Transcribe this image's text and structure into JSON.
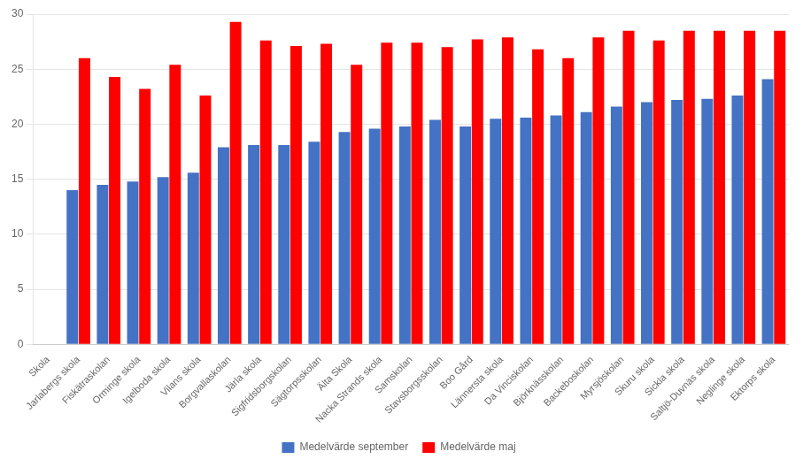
{
  "chart_data": {
    "type": "bar",
    "categories": [
      "Skola",
      "Jarlabergs skola",
      "Fiskätraskolan",
      "Orminge skola",
      "Igelboda skola",
      "Vilans skola",
      "Borgvallaskolan",
      "Järla skola",
      "Sigfridsborgskolan",
      "Sägtorpsskolan",
      "Älta Skola",
      "Nacka Strands skola",
      "Samskolan",
      "Stavsborgsskolan",
      "Boo Gård",
      "Lännersta skola",
      "Da Vinciskolan",
      "Björknässkolan",
      "Backeboskolan",
      "Myrsjöskolan",
      "Skuru skola",
      "Sickla skola",
      "Saltjö-Duvnäs skola",
      "Neglinge skola",
      "Ektorps skola"
    ],
    "series": [
      {
        "name": "Medelvärde september",
        "color": "#4472C4",
        "values": [
          0,
          14.0,
          14.5,
          14.8,
          15.2,
          15.6,
          17.9,
          18.1,
          18.1,
          18.4,
          19.3,
          19.6,
          19.8,
          20.4,
          19.8,
          20.5,
          20.6,
          20.8,
          21.1,
          21.6,
          22.0,
          22.2,
          22.3,
          22.6,
          24.1
        ]
      },
      {
        "name": "Medelvärde maj",
        "color": "#FF0000",
        "values": [
          0,
          26.0,
          24.3,
          23.2,
          25.4,
          22.6,
          29.3,
          27.6,
          27.1,
          27.3,
          25.4,
          27.4,
          27.4,
          27.0,
          27.7,
          27.9,
          26.8,
          26.0,
          27.9,
          28.5,
          27.6,
          28.5,
          28.5,
          28.5,
          28.5
        ]
      }
    ],
    "ylim": [
      0,
      30
    ],
    "yticks": [
      0,
      5,
      10,
      15,
      20,
      25,
      30
    ],
    "grid": true,
    "legend": "bottom"
  }
}
